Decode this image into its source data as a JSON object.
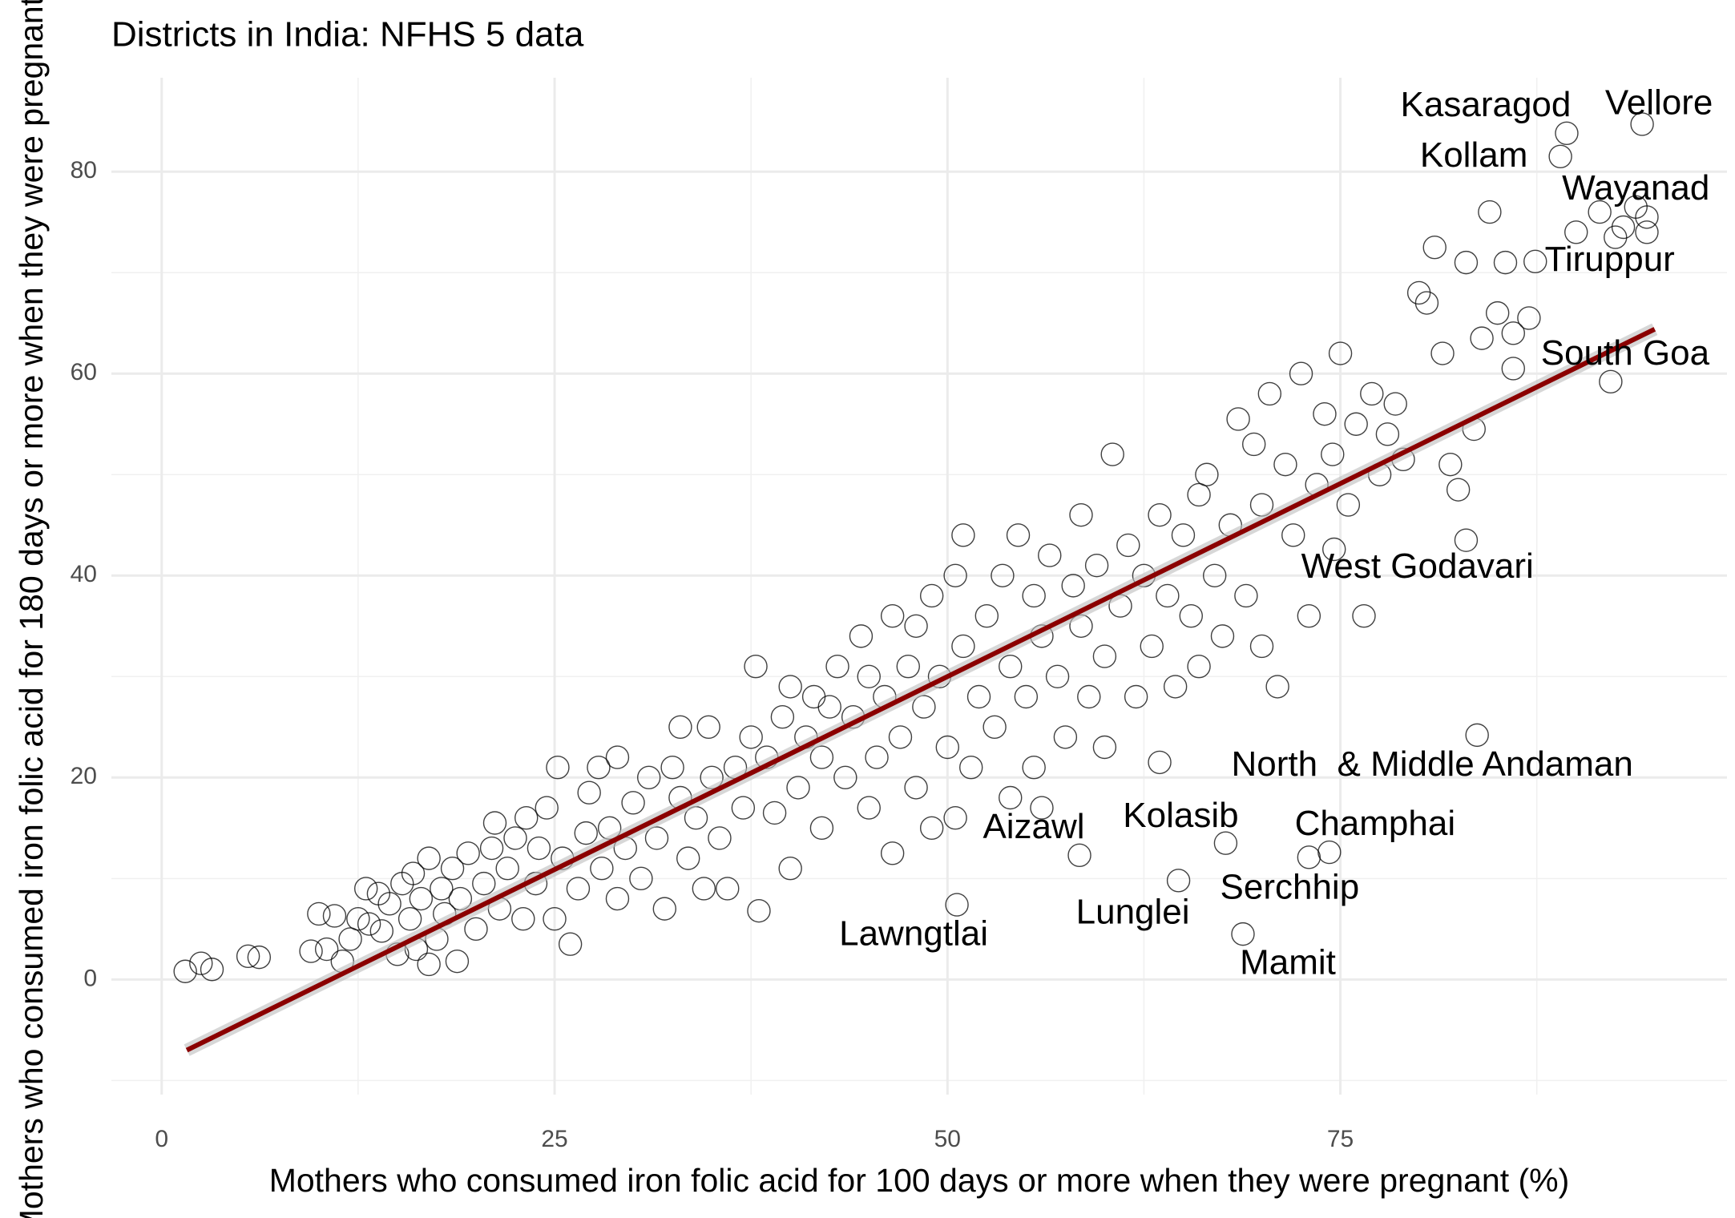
{
  "chart_data": {
    "type": "scatter",
    "title": "Districts in India: NFHS 5 data",
    "x_label": "Mothers who consumed iron folic acid for 100 days or more when they were pregnant (%)",
    "y_label": "Mothers who consumed iron folic acid for 180 days or more when they were pregnant (%)",
    "xlim": [
      -3.2,
      99.6
    ],
    "ylim": [
      -11.4,
      89.3
    ],
    "xticks": [
      0,
      25,
      50,
      75
    ],
    "yticks": [
      0,
      20,
      40,
      60,
      80
    ],
    "minor_xticks": [
      12.5,
      37.5,
      62.5,
      87.5
    ],
    "minor_yticks": [
      -10,
      10,
      30,
      50,
      70
    ],
    "grid": true,
    "color": "#000000",
    "x": [
      1.5,
      2.5,
      3.2,
      5.5,
      6.2,
      9.5,
      10,
      10.5,
      11,
      11.5,
      12,
      12.5,
      13,
      13.2,
      13.8,
      14,
      14.5,
      15,
      15.3,
      15.8,
      16,
      16.2,
      16.5,
      17,
      17,
      17.5,
      17.8,
      18,
      18.5,
      18.8,
      19,
      19.5,
      20,
      20.5,
      21,
      21.2,
      21.5,
      22,
      22.5,
      23,
      23.2,
      23.8,
      24,
      24.5,
      25,
      25.2,
      25.5,
      26,
      26.5,
      27,
      27.2,
      27.8,
      28,
      28.5,
      29,
      29,
      29.5,
      30,
      30.5,
      31,
      31.5,
      32,
      32.5,
      33,
      33,
      33.5,
      34,
      34.5,
      34.8,
      35,
      35.5,
      36,
      36.5,
      37,
      37.5,
      37.8,
      38,
      38.5,
      39,
      39.5,
      40,
      40,
      40.5,
      41,
      41.5,
      42,
      42,
      42.5,
      43,
      43.5,
      44,
      44.5,
      45,
      45,
      45.5,
      46,
      46.5,
      46.5,
      47,
      47.5,
      48,
      48,
      48.5,
      49,
      49,
      49.5,
      50,
      50.5,
      50.5,
      51,
      51,
      51.5,
      52,
      52.5,
      53,
      53.5,
      54,
      54,
      54.5,
      55,
      55.5,
      55.5,
      56,
      56,
      56.5,
      57,
      57.5,
      58,
      58.5,
      58.5,
      59,
      59.5,
      60,
      60,
      60.5,
      61,
      61.5,
      62,
      62.5,
      63,
      63.5,
      63.5,
      64,
      64.5,
      65,
      65.5,
      66,
      66,
      66.5,
      67,
      67.5,
      68,
      68.5,
      69,
      69.5,
      70,
      70,
      70.5,
      71,
      71.5,
      72,
      72.5,
      73,
      73.5,
      74,
      74.5,
      75,
      75.5,
      76,
      76.5,
      77,
      77.5,
      78,
      78.5,
      79,
      80,
      80.5,
      81,
      81.5,
      82,
      82.5,
      83,
      83,
      83.5,
      84,
      84.5,
      85,
      85.5,
      86,
      86,
      87,
      90,
      91.5,
      92.5,
      93,
      94.5,
      94.5
    ],
    "y": [
      0.8,
      1.6,
      1,
      2.3,
      2.2,
      2.8,
      6.5,
      3,
      6.3,
      1.8,
      4,
      6,
      9,
      5.5,
      8.5,
      4.8,
      7.5,
      2.5,
      9.5,
      6,
      10.5,
      3,
      8,
      1.5,
      12,
      4,
      9,
      6.5,
      11,
      1.8,
      8,
      12.5,
      5,
      9.5,
      13,
      15.5,
      7,
      11,
      14,
      6,
      16,
      9.5,
      13,
      17,
      6,
      21,
      12,
      3.5,
      9,
      14.5,
      18.5,
      21,
      11,
      15,
      8,
      22,
      13,
      17.5,
      10,
      20,
      14,
      7,
      21,
      18,
      25,
      12,
      16,
      9,
      25,
      20,
      14,
      9,
      21,
      17,
      24,
      31,
      6.8,
      22,
      16.5,
      26,
      11,
      29,
      19,
      24,
      28,
      15,
      22,
      27,
      31,
      20,
      26,
      34,
      17,
      30,
      22,
      28,
      12.5,
      36,
      24,
      31,
      19,
      35,
      27,
      15,
      38,
      30,
      23,
      40,
      16,
      33,
      44,
      21,
      28,
      36,
      25,
      40,
      18,
      31,
      44,
      28,
      38,
      21,
      34,
      17,
      42,
      30,
      24,
      39,
      35,
      46,
      28,
      41,
      32,
      23,
      52,
      37,
      43,
      28,
      40,
      33,
      46,
      21.5,
      38,
      29,
      44,
      36,
      48,
      31,
      50,
      40,
      34,
      45,
      55.5,
      38,
      53,
      47,
      33,
      58,
      29,
      51,
      44,
      60,
      36,
      49,
      56,
      52,
      62,
      47,
      55,
      36,
      58,
      50,
      54,
      57,
      51.5,
      68,
      67,
      72.5,
      62,
      51,
      48.5,
      71,
      43.5,
      54.5,
      63.5,
      76,
      66,
      71,
      64,
      60.5,
      65.5,
      74,
      76,
      73.5,
      74.5,
      75.5,
      74
    ],
    "annotations": [
      {
        "text": "Vellore",
        "x": 94.2,
        "y": 84.7
      },
      {
        "text": "Kasaragod",
        "x": 89.4,
        "y": 83.8
      },
      {
        "text": "Kollam",
        "x": 89.0,
        "y": 81.5
      },
      {
        "text": "Wayanad",
        "x": 93.8,
        "y": 76.5
      },
      {
        "text": "Tiruppur",
        "x": 87.4,
        "y": 71.1
      },
      {
        "text": "South Goa",
        "x": 92.2,
        "y": 59.2
      },
      {
        "text": "West Godavari",
        "x": 74.6,
        "y": 42.6
      },
      {
        "text": "North  & Middle Andaman",
        "x": 83.7,
        "y": 24.2
      },
      {
        "text": "Champhai",
        "x": 74.3,
        "y": 12.6
      },
      {
        "text": "Kolasib",
        "x": 67.7,
        "y": 13.5
      },
      {
        "text": "Aizawl",
        "x": 58.4,
        "y": 12.3
      },
      {
        "text": "Serchhip",
        "x": 73.0,
        "y": 12.1
      },
      {
        "text": "Lunglei",
        "x": 64.7,
        "y": 9.8
      },
      {
        "text": "Mamit",
        "x": 68.8,
        "y": 4.5
      },
      {
        "text": "Lawngtlai",
        "x": 50.6,
        "y": 7.4
      }
    ],
    "trend": {
      "x": [
        1.6,
        95
      ],
      "y": [
        -7,
        64.4
      ],
      "color": "#8b0000"
    }
  }
}
